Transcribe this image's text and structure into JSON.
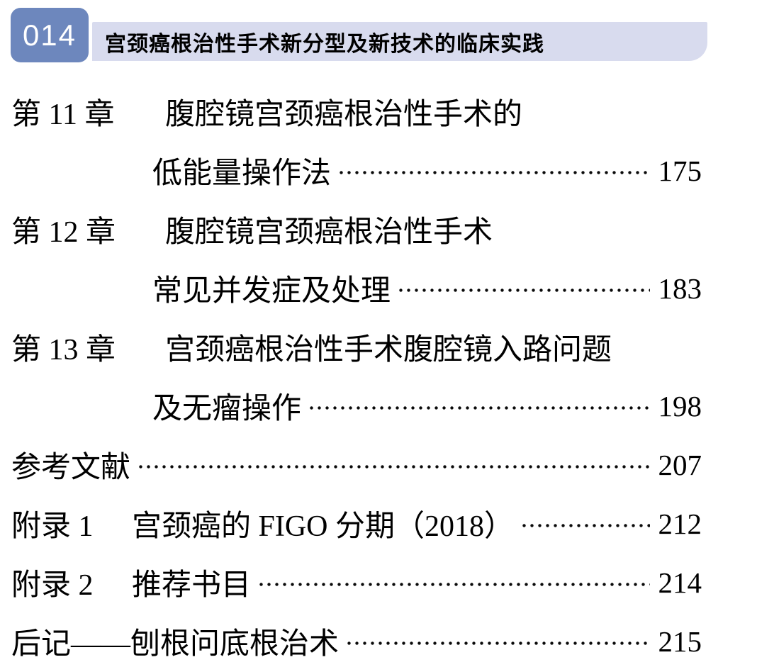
{
  "header": {
    "page_number": "014",
    "book_title": "宫颈癌根治性手术新分型及新技术的临床实践",
    "badge_color": "#6d87bd",
    "bar_color": "#d8dbee"
  },
  "toc": {
    "entries": [
      {
        "label": "第 11 章",
        "lines": [
          "腹腔镜宫颈癌根治性手术的",
          "低能量操作法"
        ],
        "page": "175"
      },
      {
        "label": "第 12 章",
        "lines": [
          "腹腔镜宫颈癌根治性手术",
          "常见并发症及处理"
        ],
        "page": "183"
      },
      {
        "label": "第 13 章",
        "lines": [
          "宫颈癌根治性手术腹腔镜入路问题",
          "及无瘤操作"
        ],
        "page": "198"
      },
      {
        "label": "",
        "lines": [
          "参考文献"
        ],
        "page": "207"
      },
      {
        "label": "附录 1",
        "lines": [
          "宫颈癌的 FIGO 分期（2018）"
        ],
        "page": "212"
      },
      {
        "label": "附录 2",
        "lines": [
          "推荐书目"
        ],
        "page": "214"
      },
      {
        "label": "",
        "lines": [
          "后记——刨根问底根治术"
        ],
        "page": "215"
      }
    ]
  }
}
